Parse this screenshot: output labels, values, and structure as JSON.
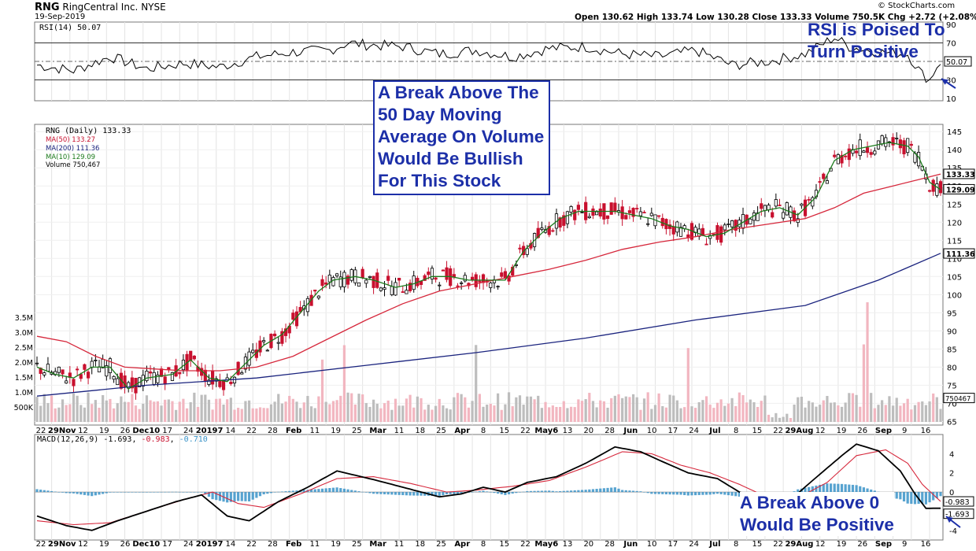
{
  "header": {
    "symbol": "RNG",
    "company": "RingCentral Inc.",
    "exchange": "NYSE",
    "date": "19-Sep-2019",
    "source": "© StockCharts.com",
    "quote": "Open 130.62  High 133.74  Low 130.28  Close 133.33  Volume 750.5K  Chg +2.72 (+2.08%)"
  },
  "legend": {
    "rsi": "RSI(14) 50.07",
    "price": "RNG (Daily) 133.33",
    "ma50": "MA(50) 133.27",
    "ma200": "MA(200) 111.36",
    "ma10": "MA(10) 129.09",
    "volume": "Volume 750,467",
    "macd_name": "MACD(12,26,9)",
    "macd_v1": "-1.693",
    "macd_v2": "-0.983",
    "macd_v3": "-0.710"
  },
  "annotations": {
    "rsi_note_1": "RSI is Poised To",
    "rsi_note_2": "Turn Positive",
    "ma_note": [
      "A Break Above The",
      "50 Day Moving",
      "Average On Volume",
      "Would Be Bullish",
      "For This Stock"
    ],
    "macd_note_1": "A Break Above 0",
    "macd_note_2": "Would Be Positive"
  },
  "colors": {
    "up": "#000000",
    "down": "#c8102e",
    "ma50": "#d6283c",
    "ma200": "#1a237e",
    "ma10": "#1b7a1b",
    "macd_hist": "#3a93c8",
    "annotation": "#1c2fa8"
  },
  "chart_data": [
    {
      "type": "line",
      "title": "RSI(14)",
      "y_ticks": [
        "90",
        "70",
        "50",
        "30",
        "10"
      ],
      "ylim": [
        10,
        90
      ],
      "overbought": 70,
      "oversold": 30,
      "last_value": "50.07"
    },
    {
      "type": "candlestick",
      "title": "RNG (Daily)",
      "x_ticks": [
        "22",
        "29Nov",
        "12",
        "19",
        "26",
        "Dec10",
        "17",
        "24",
        "20197",
        "14",
        "22",
        "28",
        "Feb",
        "11",
        "19",
        "25",
        "Mar",
        "11",
        "18",
        "25",
        "Apr",
        "8",
        "15",
        "22",
        "May6",
        "13",
        "20",
        "28",
        "Jun",
        "10",
        "17",
        "24",
        "Jul",
        "8",
        "15",
        "22",
        "29Aug",
        "12",
        "19",
        "26",
        "Sep",
        "9",
        "16"
      ],
      "y_ticks": [
        "145",
        "140",
        "135",
        "130",
        "125",
        "120",
        "115",
        "110",
        "105",
        "100",
        "95",
        "90",
        "85",
        "80",
        "75",
        "70",
        "65"
      ],
      "ylim": [
        64,
        147
      ],
      "volume_ticks": [
        "3.5M",
        "3.0M",
        "2.5M",
        "2.0M",
        "1.5M",
        "1.0M",
        "500K"
      ],
      "series": [
        {
          "name": "MA(50)",
          "last": "133.27",
          "points": [
            [
              0,
              88.5
            ],
            [
              8,
              87
            ],
            [
              16,
              83
            ],
            [
              24,
              80
            ],
            [
              32,
              79.5
            ],
            [
              40,
              79
            ],
            [
              50,
              79
            ],
            [
              60,
              80
            ],
            [
              70,
              83
            ],
            [
              80,
              88
            ],
            [
              90,
              93
            ],
            [
              100,
              97.5
            ],
            [
              110,
              101
            ],
            [
              120,
              103
            ],
            [
              130,
              105
            ],
            [
              140,
              107
            ],
            [
              150,
              109.5
            ],
            [
              160,
              112.5
            ],
            [
              170,
              114.5
            ],
            [
              180,
              116
            ],
            [
              190,
              118
            ],
            [
              200,
              119.5
            ],
            [
              210,
              121
            ],
            [
              218,
              124
            ],
            [
              226,
              128
            ],
            [
              234,
              130
            ],
            [
              242,
              132
            ],
            [
              247,
              133.3
            ]
          ]
        },
        {
          "name": "MA(200)",
          "last": "111.36",
          "points": [
            [
              0,
              72
            ],
            [
              30,
              75
            ],
            [
              60,
              77
            ],
            [
              90,
              80.5
            ],
            [
              120,
              84
            ],
            [
              150,
              88
            ],
            [
              180,
              93
            ],
            [
              210,
              97
            ],
            [
              230,
              104
            ],
            [
              247,
              111.4
            ]
          ]
        },
        {
          "name": "MA(10)",
          "last": "129.09",
          "points": [
            [
              0,
              80
            ],
            [
              5,
              78
            ],
            [
              10,
              77
            ],
            [
              15,
              80
            ],
            [
              20,
              80
            ],
            [
              25,
              74
            ],
            [
              30,
              77
            ],
            [
              37,
              78
            ],
            [
              42,
              82
            ],
            [
              47,
              77
            ],
            [
              52,
              76
            ],
            [
              57,
              81
            ],
            [
              62,
              86
            ],
            [
              67,
              89
            ],
            [
              72,
              95
            ],
            [
              77,
              101
            ],
            [
              81,
              104
            ],
            [
              87,
              105
            ],
            [
              92,
              104
            ],
            [
              98,
              102
            ],
            [
              103,
              103
            ],
            [
              108,
              105
            ],
            [
              113,
              105
            ],
            [
              118,
              104
            ],
            [
              123,
              104
            ],
            [
              128,
              104
            ],
            [
              133,
              112
            ],
            [
              138,
              117
            ],
            [
              143,
              121
            ],
            [
              148,
              123
            ],
            [
              153,
              123
            ],
            [
              158,
              123
            ],
            [
              163,
              122
            ],
            [
              168,
              121
            ],
            [
              173,
              119
            ],
            [
              178,
              118
            ],
            [
              183,
              116
            ],
            [
              188,
              117
            ],
            [
              193,
              120
            ],
            [
              198,
              123
            ],
            [
              203,
              124
            ],
            [
              208,
              122
            ],
            [
              213,
              127
            ],
            [
              218,
              137
            ],
            [
              223,
              140
            ],
            [
              228,
              141
            ],
            [
              233,
              142
            ],
            [
              238,
              141
            ],
            [
              241,
              138
            ],
            [
              244,
              131
            ],
            [
              247,
              129
            ]
          ]
        }
      ],
      "last_close": "133.33",
      "last_ma10_label": "129.09",
      "last_volume": "750467"
    },
    {
      "type": "line",
      "title": "MACD(12,26,9)",
      "y_ticks": [
        "4",
        "2",
        "0",
        "-2",
        "-4"
      ],
      "ylim": [
        -5,
        6
      ],
      "last_values": [
        "-0.983",
        "-1.693"
      ]
    }
  ]
}
